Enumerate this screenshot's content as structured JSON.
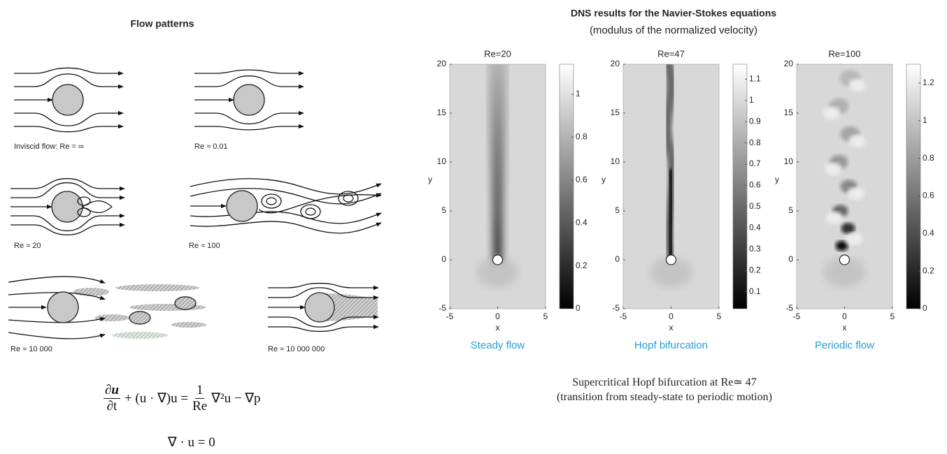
{
  "left": {
    "title": "Flow patterns",
    "panels": [
      {
        "label": "Inviscid flow: Re = ∞"
      },
      {
        "label": "Re ≈ 0.01"
      },
      {
        "label": "Re ≈ 20"
      },
      {
        "label": "Re ≈ 100"
      },
      {
        "label": "Re ≈ 10 000"
      },
      {
        "label": "Re ≈ 10 000 000"
      }
    ]
  },
  "equations": {
    "momentum": {
      "dt_num": "∂u",
      "dt_den": "∂t",
      "middle": "+ (u · ∇)u =",
      "frac_num": "1",
      "frac_den": "Re",
      "rhs": "∇²u − ∇p"
    },
    "continuity": "∇ · u = 0"
  },
  "right": {
    "title": "DNS results for the Navier-Stokes equations",
    "subtitle": "(modulus of the normalized velocity)",
    "axes": {
      "xlabel": "x",
      "ylabel": "y",
      "xlim": [
        -5,
        5
      ],
      "ylim": [
        -5,
        20
      ],
      "xticks": [
        -5,
        0,
        5
      ],
      "yticks": [
        -5,
        0,
        5,
        10,
        15,
        20
      ]
    },
    "plots": [
      {
        "title": "Re=20",
        "caption": "Steady flow",
        "clim": [
          0,
          1.14
        ],
        "cticks": [
          0,
          0.2,
          0.4,
          0.6,
          0.8,
          1
        ]
      },
      {
        "title": "Re=47",
        "caption": "Hopf bifurcation",
        "clim": [
          0.02,
          1.17
        ],
        "cticks": [
          0.1,
          0.2,
          0.3,
          0.4,
          0.5,
          0.6,
          0.7,
          0.8,
          0.9,
          1,
          1.1
        ]
      },
      {
        "title": "Re=100",
        "caption": "Periodic flow",
        "clim": [
          0,
          1.3
        ],
        "cticks": [
          0,
          0.2,
          0.4,
          0.6,
          0.8,
          1,
          1.2
        ]
      }
    ],
    "note": [
      "Supercritical Hopf bifurcation at Re≃ 47",
      "(transition from steady-state to periodic motion)"
    ]
  }
}
